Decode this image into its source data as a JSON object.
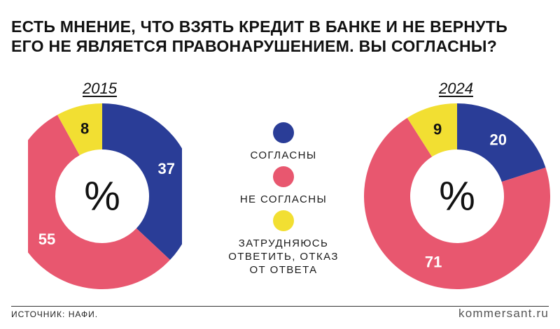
{
  "title_lines": [
    "ЕСТЬ МНЕНИЕ, ЧТО ВЗЯТЬ КРЕДИТ В БАНКЕ И НЕ ВЕРНУТЬ",
    "ЕГО НЕ ЯВЛЯЕТСЯ ПРАВОНАРУШЕНИЕМ. ВЫ СОГЛАСНЫ?"
  ],
  "legend": [
    {
      "label": "СОГЛАСНЫ",
      "color": "#2a3d97"
    },
    {
      "label": "НЕ СОГЛАСНЫ",
      "color": "#e8576f"
    },
    {
      "label": "ЗАТРУДНЯЮСЬ ОТВЕТИТЬ, ОТКАЗ ОТ ОТВЕТА",
      "color": "#f2df32"
    }
  ],
  "center_label": "%",
  "source": "ИСТОЧНИК: НАФИ.",
  "brand": "kommersant.ru",
  "chart_data": [
    {
      "type": "pie",
      "style": "donut",
      "title": "2015",
      "categories": [
        "СОГЛАСНЫ",
        "НЕ СОГЛАСНЫ",
        "ЗАТРУДНЯЮСЬ ОТВЕТИТЬ, ОТКАЗ ОТ ОТВЕТА"
      ],
      "values": [
        37,
        55,
        8
      ],
      "labels": [
        "37",
        "55",
        "8"
      ],
      "colors": [
        "#2a3d97",
        "#e8576f",
        "#f2df32"
      ]
    },
    {
      "type": "pie",
      "style": "donut",
      "title": "2024",
      "categories": [
        "СОГЛАСНЫ",
        "НЕ СОГЛАСНЫ",
        "ЗАТРУДНЯЮСЬ ОТВЕТИТЬ, ОТКАЗ ОТ ОТВЕТА"
      ],
      "values": [
        20,
        71,
        9
      ],
      "labels": [
        "20",
        "71",
        "9"
      ],
      "colors": [
        "#2a3d97",
        "#e8576f",
        "#f2df32"
      ]
    }
  ]
}
